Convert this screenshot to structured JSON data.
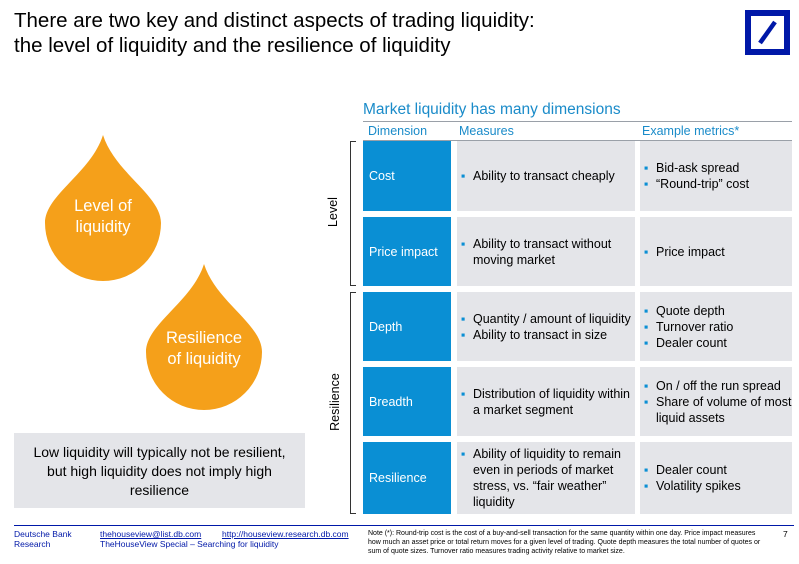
{
  "title": {
    "line1": "There are two key and distinct aspects of trading liquidity:",
    "line2": "the level of liquidity and the resilience of liquidity"
  },
  "drops": {
    "level": {
      "line1": "Level of",
      "line2": "liquidity"
    },
    "resilience": {
      "line1": "Resilience",
      "line2": "of liquidity"
    },
    "color": "#f5a01a"
  },
  "note_box": {
    "line1": "Low liquidity will typically not be resilient,",
    "line2": "but high liquidity does not imply high",
    "line3": "resilience"
  },
  "table": {
    "title": "Market liquidity has many dimensions",
    "headers": {
      "dimension": "Dimension",
      "measures": "Measures",
      "metrics": "Example metrics*"
    },
    "groups": {
      "level": "Level",
      "resilience": "Resilience"
    },
    "rows": [
      {
        "dimension": "Cost",
        "measures": [
          "Ability to transact cheaply"
        ],
        "metrics": [
          "Bid-ask spread",
          "“Round-trip” cost"
        ]
      },
      {
        "dimension": "Price impact",
        "measures": [
          "Ability to transact without moving market"
        ],
        "metrics": [
          "Price impact"
        ]
      },
      {
        "dimension": "Depth",
        "measures": [
          "Quantity / amount of liquidity",
          "Ability to transact in size"
        ],
        "metrics": [
          "Quote depth",
          "Turnover ratio",
          "Dealer count"
        ]
      },
      {
        "dimension": "Breadth",
        "measures": [
          "Distribution of liquidity within a market segment"
        ],
        "metrics": [
          "On / off the run spread",
          "Share of volume of most liquid assets"
        ]
      },
      {
        "dimension": "Resilience",
        "measures": [
          "Ability of liquidity to remain even in periods of market stress, vs. “fair weather” liquidity"
        ],
        "metrics": [
          "Dealer count",
          "Volatility spikes"
        ]
      }
    ],
    "accent": "#0a8fd4",
    "cell_bg": "#e4e5e9"
  },
  "footer": {
    "org_line1": "Deutsche Bank",
    "org_line2": "Research",
    "email": "thehouseview@list.db.com",
    "url": "http://houseview.research.db.com",
    "subtitle": "TheHouseView Special – Searching for liquidity",
    "note": "Note (*): Round-trip cost is the cost of a buy-and-sell transaction for the same quantity within one day. Price impact measures how much an asset price or total return moves for a given level of trading. Quote depth measures the total number of quotes or sum of quote sizes. Turnover ratio measures trading activity relative to market size.",
    "page": "7"
  },
  "brand_color": "#0018a8"
}
